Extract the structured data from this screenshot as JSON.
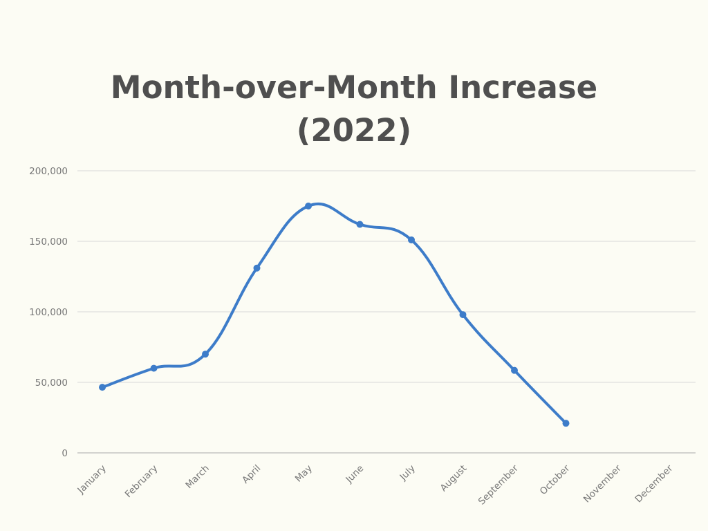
{
  "chart_data": {
    "type": "line",
    "title_lines": [
      "Month-over-Month Increase",
      "(2022)"
    ],
    "categories": [
      "January",
      "February",
      "March",
      "April",
      "May",
      "June",
      "July",
      "August",
      "September",
      "October",
      "November",
      "December"
    ],
    "series": [
      {
        "values": [
          46500,
          60000,
          70000,
          131000,
          175000,
          162000,
          151000,
          98000,
          58500,
          21000,
          null,
          null
        ],
        "color": "#3d7cc9",
        "smooth": true,
        "markers": true
      }
    ],
    "y_ticks": [
      0,
      50000,
      100000,
      150000,
      200000
    ],
    "y_tick_labels": [
      "0",
      "50,000",
      "100,000",
      "150,000",
      "200,000"
    ],
    "ylim": [
      0,
      200000
    ],
    "grid": true,
    "legend": "none"
  }
}
